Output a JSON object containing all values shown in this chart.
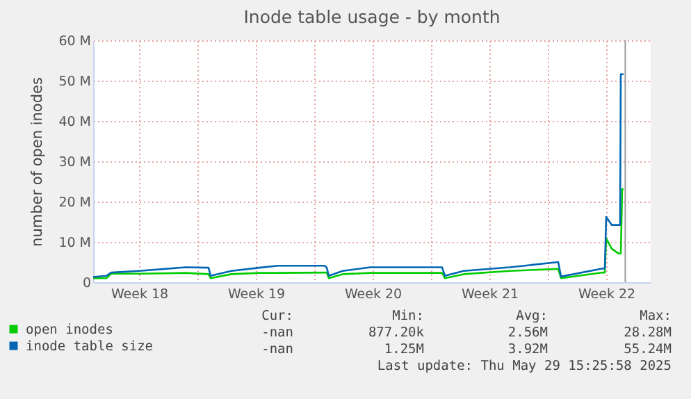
{
  "chart_data": {
    "type": "line",
    "title": "Inode table usage - by month",
    "ylabel": "number of open inodes",
    "xlim": [
      "2025-04-27T18:00",
      "2025-05-31T04:00"
    ],
    "ylim": [
      0,
      60
    ],
    "xticks": [
      {
        "value": "2025-04-30T12:00",
        "label": "Week 18"
      },
      {
        "value": "2025-05-04T00:00",
        "label": null
      },
      {
        "value": "2025-05-07T12:00",
        "label": "Week 19"
      },
      {
        "value": "2025-05-11T00:00",
        "label": null
      },
      {
        "value": "2025-05-14T12:00",
        "label": "Week 20"
      },
      {
        "value": "2025-05-18T00:00",
        "label": null
      },
      {
        "value": "2025-05-21T12:00",
        "label": "Week 21"
      },
      {
        "value": "2025-05-25T00:00",
        "label": null
      },
      {
        "value": "2025-05-28T12:00",
        "label": "Week 22"
      }
    ],
    "yticks": [
      {
        "value": 0,
        "label": "0"
      },
      {
        "value": 10,
        "label": "10 M"
      },
      {
        "value": 20,
        "label": "20 M"
      },
      {
        "value": 30,
        "label": "30 M"
      },
      {
        "value": 40,
        "label": "40 M"
      },
      {
        "value": 50,
        "label": "50 M"
      },
      {
        "value": 60,
        "label": "60 M"
      }
    ],
    "grid": true,
    "legend": "bottom left",
    "x": [
      "2025-04-27T18:00",
      "2025-04-28T13:00",
      "2025-04-28T20:00",
      "2025-04-30T12:00",
      "2025-05-03T07:00",
      "2025-05-04T16:00",
      "2025-05-04T19:00",
      "2025-05-06T01:00",
      "2025-05-07T17:00",
      "2025-05-08T20:00",
      "2025-05-11T15:00",
      "2025-05-11T18:00",
      "2025-05-11T21:00",
      "2025-05-12T17:00",
      "2025-05-14T09:00",
      "2025-05-18T16:00",
      "2025-05-18T20:00",
      "2025-05-19T23:00",
      "2025-05-22T17:00",
      "2025-05-25T15:00",
      "2025-05-25T19:00",
      "2025-05-28T07:00",
      "2025-05-28T10:00",
      "2025-05-28T12:00",
      "2025-05-28T20:00",
      "2025-05-29T06:00",
      "2025-05-29T08:00",
      "2025-05-29T09:00",
      "2025-05-29T11:00",
      "2025-05-29T13:00"
    ],
    "series": [
      {
        "name": "open inodes",
        "color": "#00cc00",
        "values": [
          1.0,
          1.0,
          2.1,
          2.1,
          2.3,
          2.0,
          1.0,
          2.0,
          2.3,
          2.3,
          2.4,
          2.4,
          1.0,
          2.0,
          2.3,
          2.3,
          1.0,
          2.0,
          2.8,
          3.3,
          1.0,
          2.4,
          2.4,
          10.9,
          8.3,
          7.1,
          7.1,
          7.1,
          23.1,
          23.1
        ]
      },
      {
        "name": "inode table size",
        "color": "#0066b3",
        "values": [
          1.3,
          1.6,
          2.4,
          2.8,
          3.7,
          3.6,
          1.6,
          2.8,
          3.6,
          4.1,
          4.1,
          3.6,
          1.6,
          2.8,
          3.7,
          3.7,
          1.6,
          2.8,
          3.7,
          5.0,
          1.4,
          3.4,
          3.4,
          16.2,
          14.2,
          14.2,
          14.2,
          51.6,
          51.6,
          51.6
        ]
      }
    ],
    "ref_lines": [
      {
        "axis": "x",
        "value": "2025-05-29T15:25",
        "label": null,
        "color": "#999999"
      }
    ],
    "annotations": [
      "Cur:",
      "Min:",
      "Avg:",
      "Max:",
      "-nan",
      "877.20k",
      "2.56M",
      "28.28M",
      "-nan",
      "1.25M",
      "3.92M",
      "55.24M",
      "Last update: Thu May 29 15:25:58 2025"
    ]
  }
}
